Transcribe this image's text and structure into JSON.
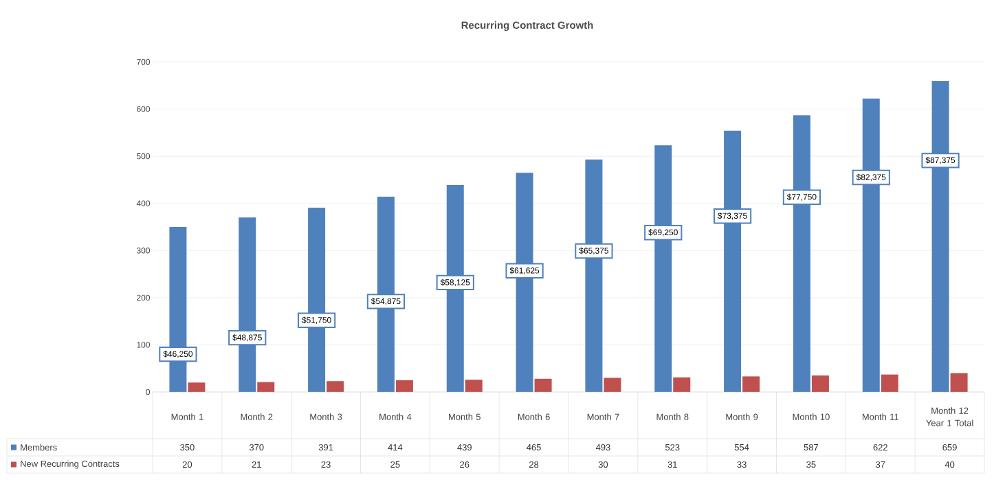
{
  "chart_data": {
    "type": "bar",
    "title": "Recurring Contract Growth",
    "categories": [
      "Month 1",
      "Month 2",
      "Month 3",
      "Month 4",
      "Month 5",
      "Month 6",
      "Month 7",
      "Month 8",
      "Month 9",
      "Month 10",
      "Month 11",
      "Month 12 Year 1 Total"
    ],
    "series": [
      {
        "name": "Members",
        "color": "#4f81bd",
        "values": [
          350,
          370,
          391,
          414,
          439,
          465,
          493,
          523,
          554,
          587,
          622,
          659
        ]
      },
      {
        "name": "New Recurring Contracts",
        "color": "#c0504d",
        "values": [
          20,
          21,
          23,
          25,
          26,
          28,
          30,
          31,
          33,
          35,
          37,
          40
        ]
      }
    ],
    "ylim": [
      0,
      700
    ],
    "yticks": [
      0,
      100,
      200,
      300,
      400,
      500,
      600,
      700
    ],
    "grid": "y",
    "legend": "bottom",
    "data_labels": true,
    "annotations": [
      {
        "text": "$46,250",
        "x": "Month 1",
        "y": 80
      },
      {
        "text": "$48,875",
        "x": "Month 2",
        "y": 115
      },
      {
        "text": "$51,750",
        "x": "Month 3",
        "y": 152
      },
      {
        "text": "$54,875",
        "x": "Month 4",
        "y": 192
      },
      {
        "text": "$58,125",
        "x": "Month 5",
        "y": 232
      },
      {
        "text": "$61,625",
        "x": "Month 6",
        "y": 257
      },
      {
        "text": "$65,375",
        "x": "Month 7",
        "y": 299
      },
      {
        "text": "$69,250",
        "x": "Month 8",
        "y": 338
      },
      {
        "text": "$73,375",
        "x": "Month 9",
        "y": 373
      },
      {
        "text": "$77,750",
        "x": "Month 10",
        "y": 413
      },
      {
        "text": "$82,375",
        "x": "Month 11",
        "y": 455
      },
      {
        "text": "$87,375",
        "x": "Month 12 Year 1 Total",
        "y": 491
      }
    ]
  }
}
